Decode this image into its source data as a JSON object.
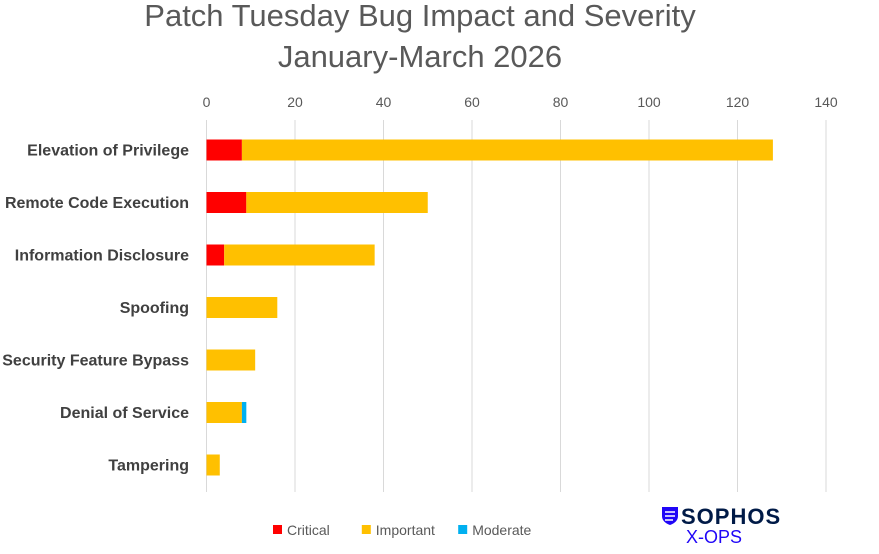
{
  "chart_data": {
    "type": "bar",
    "orientation": "horizontal",
    "stacked": true,
    "title": "Patch Tuesday Bug Impact and Severity",
    "subtitle": "January-March 2026",
    "categories": [
      "Elevation of Privilege",
      "Remote Code Execution",
      "Information Disclosure",
      "Spoofing",
      "Security Feature Bypass",
      "Denial of Service",
      "Tampering"
    ],
    "series": [
      {
        "name": "Critical",
        "color": "#ff0000",
        "values": [
          8,
          9,
          4,
          0,
          0,
          0,
          0
        ]
      },
      {
        "name": "Important",
        "color": "#ffc000",
        "values": [
          120,
          41,
          34,
          16,
          11,
          8,
          3
        ]
      },
      {
        "name": "Moderate",
        "color": "#00b0f0",
        "values": [
          0,
          0,
          0,
          0,
          0,
          1,
          0
        ]
      }
    ],
    "xlim": [
      0,
      140
    ],
    "xticks": [
      "0",
      "20",
      "40",
      "60",
      "80",
      "100",
      "120",
      "140"
    ],
    "axis_position": "top",
    "grid": true,
    "legend": "bottom"
  },
  "logo": {
    "brand": "SOPHOS",
    "sub": "X-OPS",
    "color": "#2006f7"
  }
}
